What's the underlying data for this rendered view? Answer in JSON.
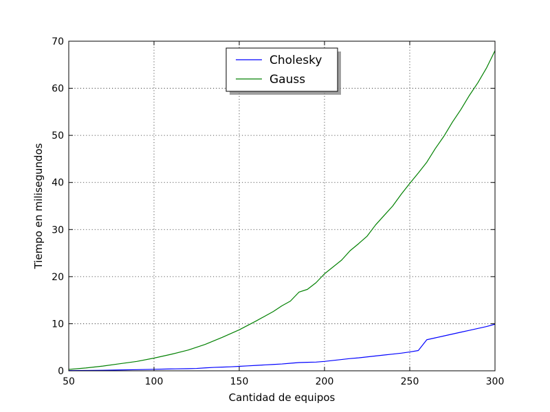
{
  "chart_data": {
    "type": "line",
    "xlabel": "Cantidad de equipos",
    "ylabel": "Tiempo en milisegundos",
    "xlim": [
      50,
      300
    ],
    "ylim": [
      0,
      70
    ],
    "xticks": [
      50,
      100,
      150,
      200,
      250,
      300
    ],
    "yticks": [
      0,
      10,
      20,
      30,
      40,
      50,
      60,
      70
    ],
    "xtick_labels": [
      "50",
      "100",
      "150",
      "200",
      "250",
      "300"
    ],
    "ytick_labels": [
      "0",
      "10",
      "20",
      "30",
      "40",
      "50",
      "60",
      "70"
    ],
    "grid": true,
    "legend_position": "top-center",
    "series": [
      {
        "name": "Cholesky",
        "color": "#0000ff",
        "x": [
          50,
          60,
          70,
          80,
          90,
          100,
          110,
          120,
          125,
          130,
          135,
          140,
          145,
          150,
          155,
          160,
          165,
          170,
          175,
          180,
          185,
          190,
          195,
          200,
          205,
          210,
          215,
          220,
          225,
          230,
          235,
          240,
          245,
          250,
          255,
          260,
          265,
          270,
          275,
          280,
          285,
          290,
          295,
          300
        ],
        "values": [
          0.05,
          0.08,
          0.12,
          0.18,
          0.25,
          0.32,
          0.4,
          0.45,
          0.5,
          0.62,
          0.72,
          0.78,
          0.85,
          0.95,
          1.05,
          1.15,
          1.25,
          1.35,
          1.45,
          1.6,
          1.75,
          1.8,
          1.85,
          2.0,
          2.2,
          2.4,
          2.6,
          2.75,
          2.95,
          3.15,
          3.35,
          3.55,
          3.75,
          4.0,
          4.3,
          6.6,
          7.0,
          7.4,
          7.8,
          8.2,
          8.6,
          9.0,
          9.4,
          9.9
        ]
      },
      {
        "name": "Gauss",
        "color": "#008000",
        "x": [
          50,
          60,
          70,
          80,
          90,
          100,
          110,
          120,
          130,
          140,
          150,
          160,
          170,
          175,
          180,
          185,
          190,
          195,
          200,
          210,
          215,
          220,
          225,
          230,
          235,
          240,
          245,
          250,
          255,
          260,
          265,
          270,
          275,
          280,
          285,
          290,
          295,
          300
        ],
        "values": [
          0.3,
          0.6,
          1.0,
          1.5,
          2.0,
          2.7,
          3.5,
          4.4,
          5.6,
          7.1,
          8.7,
          10.6,
          12.6,
          13.8,
          14.8,
          16.7,
          17.3,
          18.7,
          20.6,
          23.5,
          25.5,
          27.0,
          28.6,
          31.0,
          33.0,
          35.0,
          37.5,
          39.8,
          42.0,
          44.3,
          47.2,
          49.8,
          52.8,
          55.5,
          58.5,
          61.2,
          64.3,
          68.0
        ]
      }
    ]
  }
}
